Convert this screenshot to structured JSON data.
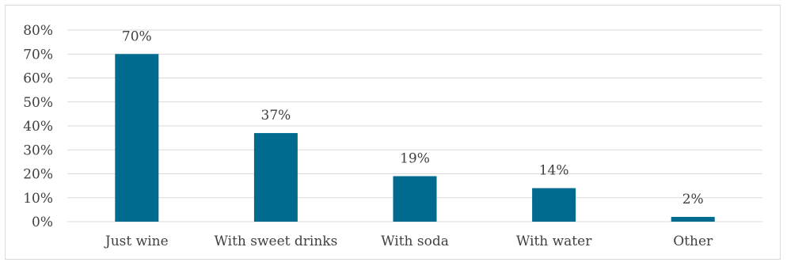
{
  "chart_data": {
    "type": "bar",
    "categories": [
      "Just wine",
      "With sweet drinks",
      "With soda",
      "With water",
      "Other"
    ],
    "values": [
      70,
      37,
      19,
      14,
      2
    ],
    "data_labels": [
      "70%",
      "37%",
      "19%",
      "14%",
      "2%"
    ],
    "title": "",
    "xlabel": "",
    "ylabel": "",
    "ylim": [
      0,
      80
    ],
    "yticks": [
      0,
      10,
      20,
      30,
      40,
      50,
      60,
      70,
      80
    ],
    "ytick_labels": [
      "0%",
      "10%",
      "20%",
      "30%",
      "40%",
      "50%",
      "60%",
      "70%",
      "80%"
    ],
    "grid": true,
    "legend": "none",
    "bar_color": "#006b8f",
    "grid_color": "#d9d9d9",
    "text_color": "#404040"
  }
}
